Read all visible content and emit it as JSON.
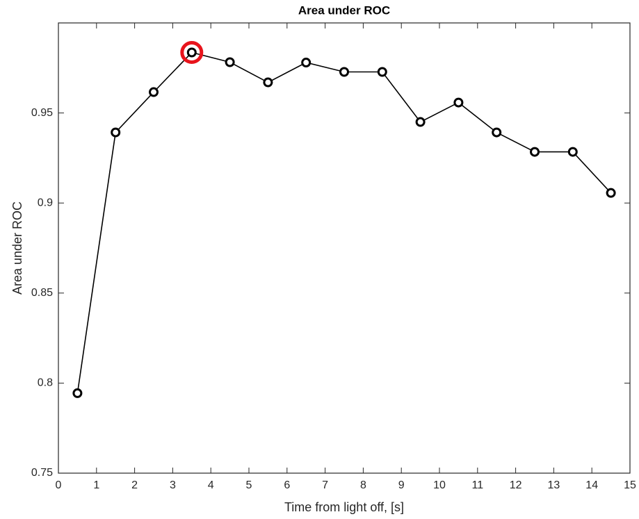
{
  "chart_data": {
    "type": "line",
    "title": "Area under ROC",
    "x_label": "Time from light off, [s]",
    "y_label": "Area under ROC",
    "x": [
      0.5,
      1.5,
      2.5,
      3.5,
      4.5,
      5.5,
      6.5,
      7.5,
      8.5,
      9.5,
      10.5,
      11.5,
      12.5,
      13.5,
      14.5
    ],
    "series": [
      {
        "name": "Area under ROC",
        "color": "#000000",
        "values": [
          0.7944,
          0.9392,
          0.9616,
          0.9836,
          0.9782,
          0.967,
          0.978,
          0.9728,
          0.9728,
          0.945,
          0.9558,
          0.9392,
          0.9284,
          0.9284,
          0.9056
        ]
      }
    ],
    "highlight_index": 3,
    "highlight_color": "#e8141c",
    "xlim": [
      0,
      15
    ],
    "xticks": [
      0,
      1,
      2,
      3,
      4,
      5,
      6,
      7,
      8,
      9,
      10,
      11,
      12,
      13,
      14,
      15
    ],
    "ylim": [
      0.75,
      1.0
    ],
    "yticks": [
      0.75,
      0.8,
      0.85,
      0.9,
      0.95
    ],
    "grid": false
  }
}
